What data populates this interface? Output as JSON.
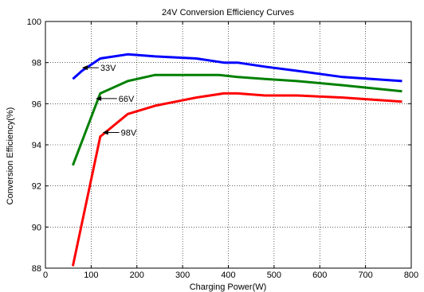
{
  "chart_data": {
    "type": "line",
    "title": "24V Conversion Efficiency Curves",
    "xlabel": "Charging Power(W)",
    "ylabel": "Conversion Efficiency(%)",
    "xlim": [
      0,
      800
    ],
    "ylim": [
      88,
      100
    ],
    "xticks": [
      0,
      100,
      200,
      300,
      400,
      500,
      600,
      700,
      800
    ],
    "yticks": [
      88,
      90,
      92,
      94,
      96,
      98,
      100
    ],
    "grid": true,
    "series": [
      {
        "name": "33V",
        "color": "#0000ff",
        "x": [
          60,
          80,
          120,
          180,
          240,
          330,
          390,
          420,
          480,
          550,
          650,
          780
        ],
        "y": [
          97.2,
          97.6,
          98.2,
          98.4,
          98.3,
          98.2,
          98.0,
          98.0,
          97.8,
          97.6,
          97.3,
          97.1
        ]
      },
      {
        "name": "66V",
        "color": "#008000",
        "x": [
          60,
          120,
          180,
          240,
          330,
          380,
          420,
          480,
          550,
          650,
          780
        ],
        "y": [
          93.0,
          96.5,
          97.1,
          97.4,
          97.4,
          97.4,
          97.3,
          97.2,
          97.1,
          96.9,
          96.6
        ]
      },
      {
        "name": "98V",
        "color": "#ff0000",
        "x": [
          60,
          120,
          180,
          240,
          330,
          390,
          420,
          480,
          550,
          650,
          780
        ],
        "y": [
          88.1,
          94.4,
          95.5,
          95.9,
          96.3,
          96.5,
          96.5,
          96.4,
          96.4,
          96.3,
          96.1
        ]
      }
    ],
    "annotations": [
      {
        "text": "33V",
        "target_x": 80,
        "target_y": 97.75,
        "text_x": 120,
        "text_y": 97.75
      },
      {
        "text": "66V",
        "target_x": 110,
        "target_y": 96.25,
        "text_x": 160,
        "text_y": 96.25
      },
      {
        "text": "98V",
        "target_x": 125,
        "target_y": 94.6,
        "text_x": 165,
        "text_y": 94.6
      }
    ]
  }
}
